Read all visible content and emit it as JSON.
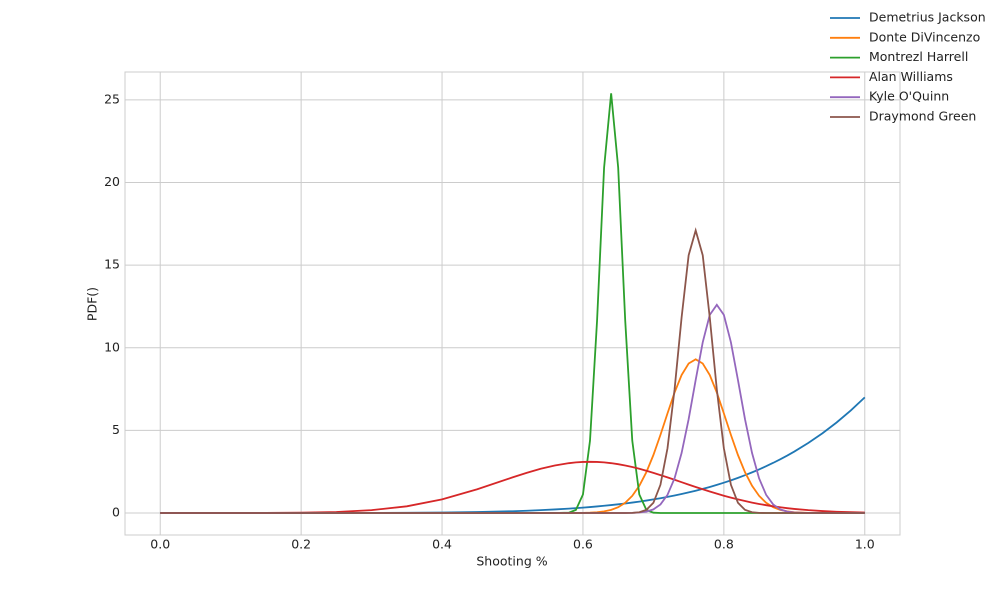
{
  "chart_data": {
    "type": "line",
    "xlabel": "Shooting %",
    "ylabel": "PDF()",
    "x": [
      0,
      0.05,
      0.1,
      0.15,
      0.2,
      0.25,
      0.3,
      0.35,
      0.4,
      0.45,
      0.5,
      0.52,
      0.54,
      0.56,
      0.58,
      0.59,
      0.6,
      0.61,
      0.62,
      0.63,
      0.64,
      0.65,
      0.66,
      0.67,
      0.68,
      0.69,
      0.7,
      0.71,
      0.72,
      0.73,
      0.74,
      0.75,
      0.76,
      0.77,
      0.78,
      0.79,
      0.8,
      0.81,
      0.82,
      0.83,
      0.84,
      0.85,
      0.86,
      0.87,
      0.88,
      0.89,
      0.9,
      0.92,
      0.94,
      0.96,
      0.98,
      1.0
    ],
    "series": [
      {
        "name": "Demetrius Jackson",
        "color": "#1f77b4",
        "values": [
          0,
          0,
          0,
          0.0001,
          0.0004,
          0.0017,
          0.0051,
          0.0129,
          0.0287,
          0.0581,
          0.1094,
          0.138,
          0.174,
          0.216,
          0.266,
          0.295,
          0.327,
          0.361,
          0.398,
          0.438,
          0.481,
          0.528,
          0.579,
          0.633,
          0.692,
          0.755,
          0.824,
          0.897,
          0.975,
          1.059,
          1.149,
          1.246,
          1.349,
          1.459,
          1.576,
          1.702,
          1.835,
          1.977,
          2.128,
          2.288,
          2.459,
          2.64,
          2.832,
          3.035,
          3.251,
          3.479,
          3.72,
          4.245,
          4.829,
          5.479,
          6.201,
          7
        ]
      },
      {
        "name": "Donte DiVincenzo",
        "color": "#ff7f0e",
        "values": [
          0,
          0,
          0,
          0,
          0,
          0,
          0,
          0,
          0,
          0,
          0,
          0,
          0,
          0,
          0.001,
          0.004,
          0.009,
          0.021,
          0.046,
          0.097,
          0.19,
          0.35,
          0.62,
          1.04,
          1.65,
          2.47,
          3.51,
          4.73,
          6.03,
          7.29,
          8.35,
          9.05,
          9.3,
          9.05,
          8.35,
          7.29,
          6.03,
          4.73,
          3.51,
          2.47,
          1.65,
          1.04,
          0.62,
          0.35,
          0.19,
          0.097,
          0.046,
          0.009,
          0.001,
          0,
          0,
          0
        ]
      },
      {
        "name": "Montrezl Harrell",
        "color": "#2ca02c",
        "values": [
          0,
          0,
          0,
          0,
          0,
          0,
          0,
          0,
          0,
          0,
          0,
          0,
          0,
          0,
          0.02,
          0.19,
          1.12,
          4.38,
          11.63,
          20.9,
          25.4,
          20.9,
          11.63,
          4.38,
          1.12,
          0.19,
          0.02,
          0,
          0,
          0,
          0,
          0,
          0,
          0,
          0,
          0,
          0,
          0,
          0,
          0,
          0,
          0,
          0,
          0,
          0,
          0,
          0,
          0,
          0,
          0,
          0,
          0
        ]
      },
      {
        "name": "Alan Williams",
        "color": "#d62728",
        "values": [
          0,
          0.0003,
          0.0012,
          0.0054,
          0.02,
          0.063,
          0.173,
          0.407,
          0.824,
          1.437,
          2.155,
          2.43,
          2.68,
          2.876,
          3.017,
          3.063,
          3.091,
          3.1,
          3.091,
          3.063,
          3.017,
          2.955,
          2.876,
          2.782,
          2.68,
          2.558,
          2.43,
          2.295,
          2.155,
          2.011,
          1.866,
          1.72,
          1.577,
          1.437,
          1.301,
          1.171,
          1.048,
          0.932,
          0.824,
          0.724,
          0.632,
          0.549,
          0.474,
          0.407,
          0.347,
          0.294,
          0.248,
          0.173,
          0.118,
          0.078,
          0.051,
          0.032
        ]
      },
      {
        "name": "Kyle O'Quinn",
        "color": "#9467bd",
        "values": [
          0,
          0,
          0,
          0,
          0,
          0,
          0,
          0,
          0,
          0,
          0,
          0,
          0,
          0,
          0,
          0,
          0,
          0,
          0,
          0,
          0,
          0,
          0.003,
          0.01,
          0.031,
          0.087,
          0.22,
          0.52,
          1.1,
          2.1,
          3.63,
          5.68,
          8.05,
          10.33,
          11.99,
          12.6,
          11.99,
          10.33,
          8.05,
          5.68,
          3.63,
          2.1,
          1.1,
          0.52,
          0.22,
          0.087,
          0.031,
          0.003,
          0,
          0,
          0,
          0
        ]
      },
      {
        "name": "Draymond Green",
        "color": "#8c564b",
        "values": [
          0,
          0,
          0,
          0,
          0,
          0,
          0,
          0,
          0,
          0,
          0,
          0,
          0,
          0,
          0,
          0,
          0,
          0,
          0,
          0,
          0,
          0,
          0.002,
          0.01,
          0.047,
          0.19,
          0.62,
          1.71,
          3.92,
          7.47,
          11.83,
          15.6,
          17.1,
          15.6,
          11.83,
          7.47,
          3.92,
          1.71,
          0.62,
          0.19,
          0.047,
          0.01,
          0.002,
          0,
          0,
          0,
          0,
          0,
          0,
          0,
          0,
          0
        ]
      }
    ],
    "xlim": [
      -0.05,
      1.05
    ],
    "xticks": [
      {
        "value": 0,
        "label": "0.0"
      },
      {
        "value": 0.2,
        "label": "0.2"
      },
      {
        "value": 0.4,
        "label": "0.4"
      },
      {
        "value": 0.6,
        "label": "0.6"
      },
      {
        "value": 0.8,
        "label": "0.8"
      },
      {
        "value": 1,
        "label": "1.0"
      }
    ],
    "ylim": [
      -1.33,
      26.69
    ],
    "yticks": [
      0,
      5,
      10,
      15,
      20,
      25
    ],
    "grid": true,
    "legend": "upper right"
  }
}
